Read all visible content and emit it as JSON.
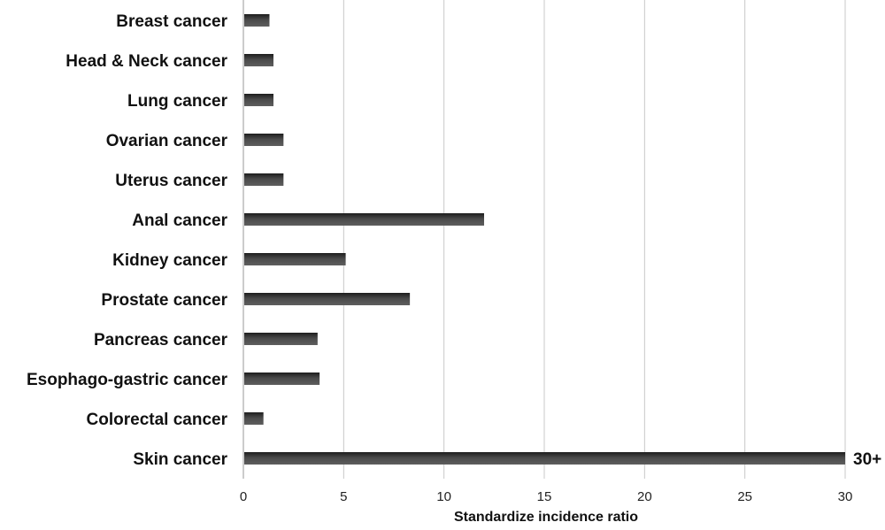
{
  "chart_data": {
    "type": "bar",
    "orientation": "horizontal",
    "categories": [
      "Breast cancer",
      "Head & Neck cancer",
      "Lung cancer",
      "Ovarian cancer",
      "Uterus cancer",
      "Anal cancer",
      "Kidney cancer",
      "Prostate cancer",
      "Pancreas cancer",
      "Esophago-gastric cancer",
      "Colorectal cancer",
      "Skin cancer"
    ],
    "values": [
      1.3,
      1.5,
      1.5,
      2.0,
      2.0,
      12.0,
      5.1,
      8.3,
      3.7,
      3.8,
      1.0,
      30
    ],
    "xlabel": "Standardize incidence ratio",
    "ylabel": "",
    "xlim": [
      0,
      30
    ],
    "xticks": [
      0,
      5,
      10,
      15,
      20,
      25,
      30
    ],
    "grid": "vertical",
    "bar_color": "#3a3a3a",
    "data_labels": [
      {
        "category": "Skin cancer",
        "text": "30+"
      }
    ]
  }
}
